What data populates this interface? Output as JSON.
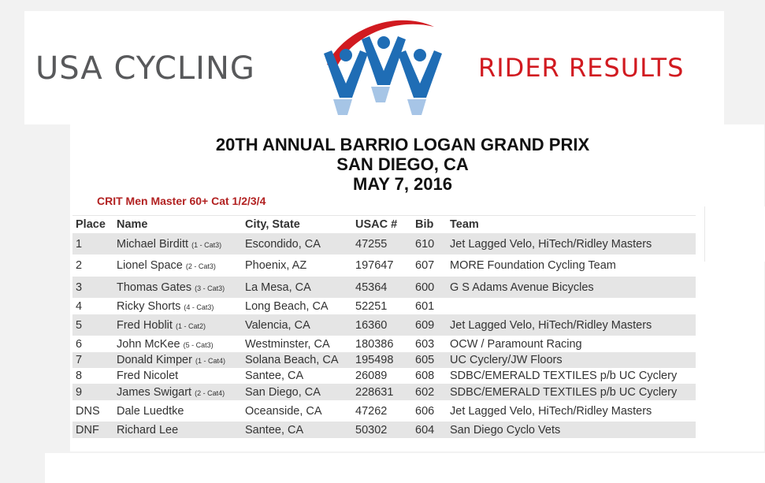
{
  "header": {
    "brand": "USA CYCLING",
    "section": "RIDER RESULTS",
    "colors": {
      "brand_gray": "#58595b",
      "brand_red": "#d11a20",
      "logo_blue": "#1f6db5"
    }
  },
  "event": {
    "name": "20TH ANNUAL BARRIO LOGAN GRAND PRIX",
    "location": "SAN DIEGO, CA",
    "date": "MAY 7, 2016"
  },
  "race": {
    "title": "CRIT Men Master 60+ Cat 1/2/3/4"
  },
  "table": {
    "columns": [
      "Place",
      "Name",
      "City, State",
      "USAC #",
      "Bib",
      "Team"
    ],
    "rows": [
      {
        "place": "1",
        "name": "Michael Birditt",
        "cat": "(1 - Cat3)",
        "city": "Escondido, CA",
        "usac": "47255",
        "bib": "610",
        "team": "Jet Lagged Velo, HiTech/Ridley Masters"
      },
      {
        "place": "2",
        "name": "Lionel Space",
        "cat": "(2 - Cat3)",
        "city": "Phoenix, AZ",
        "usac": "197647",
        "bib": "607",
        "team": "MORE Foundation Cycling Team"
      },
      {
        "place": "3",
        "name": "Thomas Gates",
        "cat": "(3 - Cat3)",
        "city": "La Mesa, CA",
        "usac": "45364",
        "bib": "600",
        "team": "G S Adams Avenue Bicycles"
      },
      {
        "place": "4",
        "name": "Ricky Shorts",
        "cat": "(4 - Cat3)",
        "city": "Long Beach, CA",
        "usac": "52251",
        "bib": "601",
        "team": ""
      },
      {
        "place": "5",
        "name": "Fred Hoblit",
        "cat": "(1 - Cat2)",
        "city": "Valencia, CA",
        "usac": "16360",
        "bib": "609",
        "team": "Jet Lagged Velo, HiTech/Ridley Masters"
      },
      {
        "place": "6",
        "name": "John McKee",
        "cat": "(5 - Cat3)",
        "city": "Westminster, CA",
        "usac": "180386",
        "bib": "603",
        "team": "OCW / Paramount Racing"
      },
      {
        "place": "7",
        "name": "Donald Kimper",
        "cat": "(1 - Cat4)",
        "city": "Solana Beach, CA",
        "usac": "195498",
        "bib": "605",
        "team": "UC Cyclery/JW Floors"
      },
      {
        "place": "8",
        "name": "Fred Nicolet",
        "cat": "",
        "city": "Santee, CA",
        "usac": "26089",
        "bib": "608",
        "team": "SDBC/EMERALD TEXTILES p/b UC Cyclery"
      },
      {
        "place": "9",
        "name": "James Swigart",
        "cat": "(2 - Cat4)",
        "city": "San Diego, CA",
        "usac": "228631",
        "bib": "602",
        "team": "SDBC/EMERALD TEXTILES p/b UC Cyclery"
      },
      {
        "place": "DNS",
        "name": "Dale Luedtke",
        "cat": "",
        "city": "Oceanside, CA",
        "usac": "47262",
        "bib": "606",
        "team": "Jet Lagged Velo, HiTech/Ridley Masters"
      },
      {
        "place": "DNF",
        "name": "Richard Lee",
        "cat": "",
        "city": "Santee, CA",
        "usac": "50302",
        "bib": "604",
        "team": "San Diego Cyclo Vets"
      }
    ]
  }
}
